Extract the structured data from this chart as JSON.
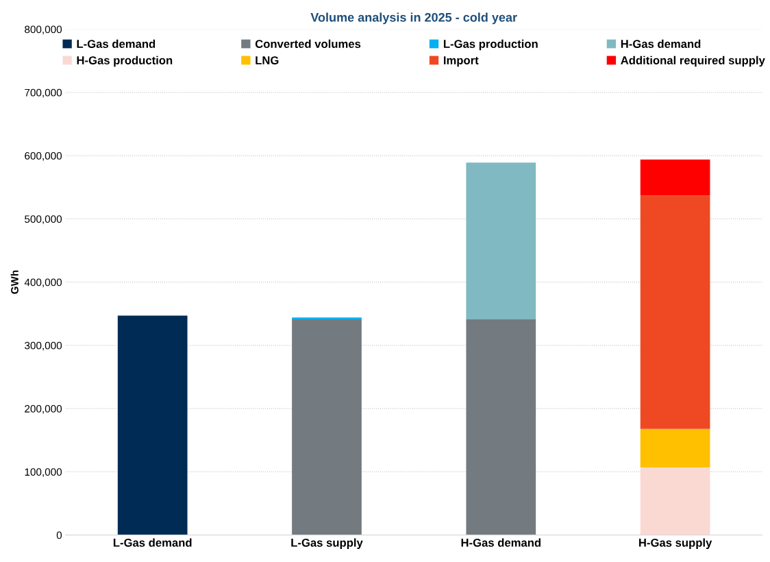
{
  "chart_data": {
    "type": "bar",
    "stacked": true,
    "title": "Volume analysis in 2025 - cold year",
    "ylabel": "GWh",
    "categories": [
      "L-Gas demand",
      "L-Gas supply",
      "H-Gas demand",
      "H-Gas supply"
    ],
    "series": [
      {
        "name": "L-Gas demand",
        "color": "#002b55",
        "values": [
          347000,
          null,
          null,
          null
        ]
      },
      {
        "name": "Converted volumes",
        "color": "#737b80",
        "values": [
          null,
          341000,
          341000,
          null
        ]
      },
      {
        "name": "L-Gas production",
        "color": "#00b0f0",
        "values": [
          null,
          3000,
          null,
          null
        ]
      },
      {
        "name": "H-Gas demand",
        "color": "#80b9c2",
        "values": [
          null,
          null,
          248000,
          null
        ]
      },
      {
        "name": "H-Gas production",
        "color": "#fad9d3",
        "values": [
          null,
          null,
          null,
          107000
        ]
      },
      {
        "name": "LNG",
        "color": "#ffc000",
        "values": [
          null,
          null,
          null,
          61000
        ]
      },
      {
        "name": "Import",
        "color": "#ef4923",
        "values": [
          null,
          null,
          null,
          369000
        ]
      },
      {
        "name": "Additional required supply",
        "color": "#ff0000",
        "values": [
          null,
          null,
          null,
          57000
        ]
      }
    ],
    "ylim": [
      0,
      800000
    ],
    "yticks": [
      {
        "value": 0,
        "label": "0"
      },
      {
        "value": 100000,
        "label": "100,000"
      },
      {
        "value": 200000,
        "label": "200,000"
      },
      {
        "value": 300000,
        "label": "300,000"
      },
      {
        "value": 400000,
        "label": "400,000"
      },
      {
        "value": 500000,
        "label": "500,000"
      },
      {
        "value": 600000,
        "label": "600,000"
      },
      {
        "value": 700000,
        "label": "700,000"
      },
      {
        "value": 800000,
        "label": "800,000"
      }
    ],
    "grid": "y",
    "legend": "top"
  }
}
